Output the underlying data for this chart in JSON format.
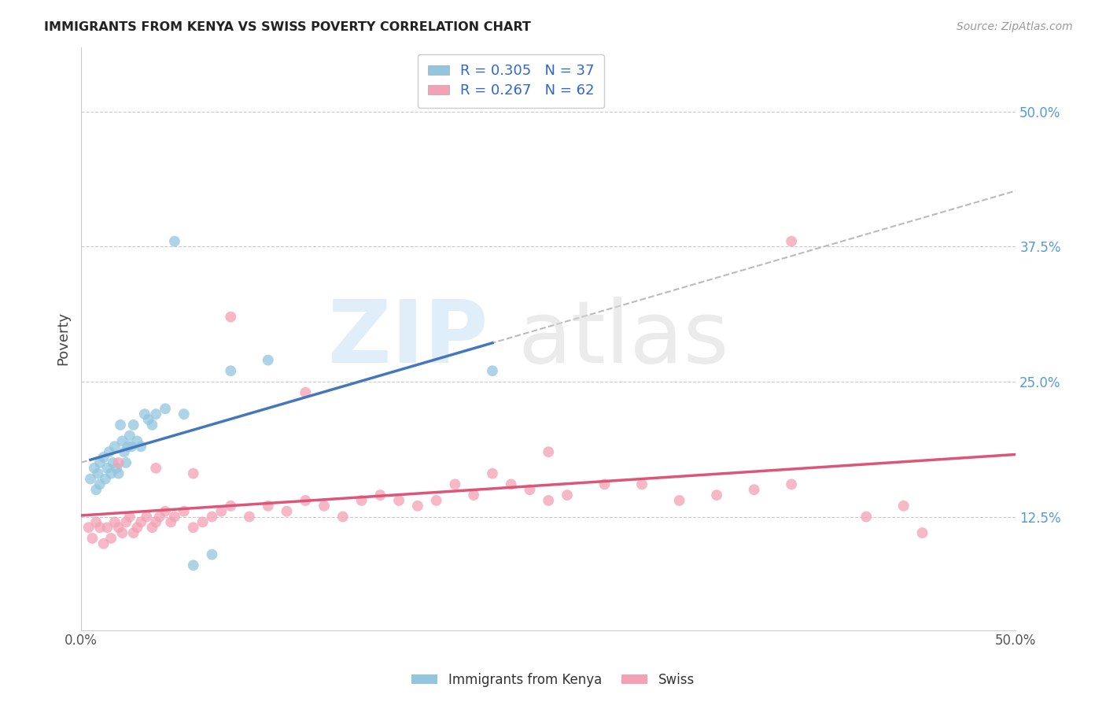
{
  "title": "IMMIGRANTS FROM KENYA VS SWISS POVERTY CORRELATION CHART",
  "source": "Source: ZipAtlas.com",
  "ylabel": "Poverty",
  "xlim": [
    0.0,
    0.5
  ],
  "ylim": [
    0.02,
    0.56
  ],
  "y_tick_values": [
    0.125,
    0.25,
    0.375,
    0.5
  ],
  "y_tick_labels": [
    "12.5%",
    "25.0%",
    "37.5%",
    "50.0%"
  ],
  "x_tick_values": [
    0.0,
    0.5
  ],
  "x_tick_labels": [
    "0.0%",
    "50.0%"
  ],
  "legend1_R": "0.305",
  "legend1_N": "37",
  "legend2_R": "0.267",
  "legend2_N": "62",
  "color_kenya": "#92c5de",
  "color_swiss": "#f4a0b5",
  "color_kenya_line": "#4477bb",
  "color_swiss_line": "#dd5577",
  "color_dashed": "#bbbbbb",
  "background_color": "#ffffff",
  "kenya_scatter_x": [
    0.005,
    0.007,
    0.008,
    0.009,
    0.01,
    0.01,
    0.012,
    0.013,
    0.014,
    0.015,
    0.016,
    0.017,
    0.018,
    0.019,
    0.02,
    0.021,
    0.022,
    0.023,
    0.024,
    0.025,
    0.026,
    0.027,
    0.028,
    0.03,
    0.032,
    0.034,
    0.036,
    0.038,
    0.04,
    0.045,
    0.05,
    0.055,
    0.06,
    0.07,
    0.08,
    0.1,
    0.22
  ],
  "kenya_scatter_y": [
    0.16,
    0.17,
    0.15,
    0.165,
    0.155,
    0.175,
    0.18,
    0.16,
    0.17,
    0.185,
    0.165,
    0.175,
    0.19,
    0.17,
    0.165,
    0.21,
    0.195,
    0.185,
    0.175,
    0.19,
    0.2,
    0.19,
    0.21,
    0.195,
    0.19,
    0.22,
    0.215,
    0.21,
    0.22,
    0.225,
    0.38,
    0.22,
    0.08,
    0.09,
    0.26,
    0.27,
    0.26
  ],
  "swiss_scatter_x": [
    0.004,
    0.006,
    0.008,
    0.01,
    0.012,
    0.014,
    0.016,
    0.018,
    0.02,
    0.022,
    0.024,
    0.026,
    0.028,
    0.03,
    0.032,
    0.035,
    0.038,
    0.04,
    0.042,
    0.045,
    0.048,
    0.05,
    0.055,
    0.06,
    0.065,
    0.07,
    0.075,
    0.08,
    0.09,
    0.1,
    0.11,
    0.12,
    0.13,
    0.14,
    0.15,
    0.16,
    0.17,
    0.18,
    0.19,
    0.2,
    0.21,
    0.22,
    0.23,
    0.24,
    0.25,
    0.26,
    0.28,
    0.3,
    0.32,
    0.34,
    0.36,
    0.38,
    0.42,
    0.44,
    0.02,
    0.04,
    0.06,
    0.08,
    0.12,
    0.25,
    0.38,
    0.45
  ],
  "swiss_scatter_y": [
    0.115,
    0.105,
    0.12,
    0.115,
    0.1,
    0.115,
    0.105,
    0.12,
    0.115,
    0.11,
    0.12,
    0.125,
    0.11,
    0.115,
    0.12,
    0.125,
    0.115,
    0.12,
    0.125,
    0.13,
    0.12,
    0.125,
    0.13,
    0.115,
    0.12,
    0.125,
    0.13,
    0.135,
    0.125,
    0.135,
    0.13,
    0.14,
    0.135,
    0.125,
    0.14,
    0.145,
    0.14,
    0.135,
    0.14,
    0.155,
    0.145,
    0.165,
    0.155,
    0.15,
    0.14,
    0.145,
    0.155,
    0.155,
    0.14,
    0.145,
    0.15,
    0.155,
    0.125,
    0.135,
    0.175,
    0.17,
    0.165,
    0.31,
    0.24,
    0.185,
    0.38,
    0.11
  ],
  "watermark_zip_color": "#cce4f5",
  "watermark_atlas_color": "#d8d8d8"
}
